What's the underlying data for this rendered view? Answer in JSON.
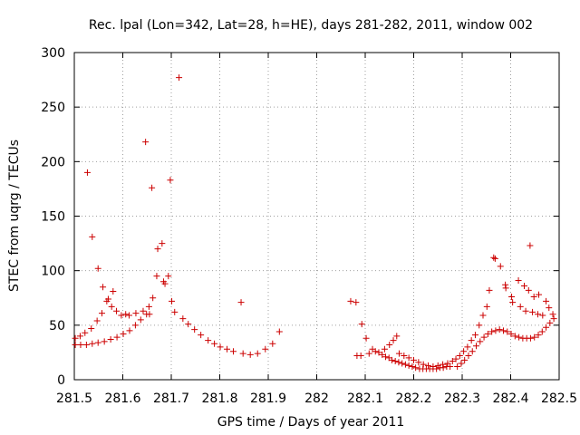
{
  "chart_data": {
    "type": "scatter",
    "title": "Rec. lpal (Lon=342, Lat=28, h=HE), days 281-282, 2011, window 002",
    "xlabel": "GPS time / Days of year 2011",
    "ylabel": "STEC from uqrg / TECUs",
    "xlim": [
      281.5,
      282.5
    ],
    "ylim": [
      0,
      300
    ],
    "xticks": [
      281.5,
      281.6,
      281.7,
      281.8,
      281.9,
      282.0,
      282.1,
      282.2,
      282.3,
      282.4,
      282.5
    ],
    "xtick_labels": [
      "281.5",
      "281.6",
      "281.7",
      "281.8",
      "281.9",
      "282",
      "282.1",
      "282.2",
      "282.3",
      "282.4",
      "282.5"
    ],
    "yticks": [
      0,
      50,
      100,
      150,
      200,
      250,
      300
    ],
    "ytick_labels": [
      "0",
      "50",
      "100",
      "150",
      "200",
      "250",
      "300"
    ],
    "grid": true,
    "marker": "plus",
    "marker_color": "#cc0000",
    "series": [
      {
        "name": "",
        "points": [
          [
            281.502,
            38
          ],
          [
            281.512,
            40
          ],
          [
            281.522,
            43
          ],
          [
            281.527,
            190
          ],
          [
            281.535,
            47
          ],
          [
            281.537,
            131
          ],
          [
            281.547,
            54
          ],
          [
            281.549,
            102
          ],
          [
            281.557,
            61
          ],
          [
            281.559,
            85
          ],
          [
            281.567,
            72
          ],
          [
            281.57,
            74
          ],
          [
            281.577,
            67
          ],
          [
            281.58,
            81
          ],
          [
            281.587,
            63
          ],
          [
            281.597,
            59
          ],
          [
            281.606,
            60
          ],
          [
            281.613,
            59
          ],
          [
            281.627,
            61
          ],
          [
            281.642,
            63
          ],
          [
            281.647,
            218
          ],
          [
            281.654,
            67
          ],
          [
            281.66,
            176
          ],
          [
            281.662,
            75
          ],
          [
            281.67,
            95
          ],
          [
            281.672,
            120
          ],
          [
            281.681,
            125
          ],
          [
            281.684,
            90
          ],
          [
            281.687,
            88
          ],
          [
            281.694,
            95
          ],
          [
            281.698,
            183
          ],
          [
            281.701,
            72
          ],
          [
            281.707,
            62
          ],
          [
            281.716,
            277
          ],
          [
            281.724,
            56
          ],
          [
            281.735,
            51
          ],
          [
            281.748,
            46
          ],
          [
            281.761,
            41
          ],
          [
            281.776,
            36
          ],
          [
            281.789,
            33
          ],
          [
            281.801,
            30
          ],
          [
            281.815,
            28
          ],
          [
            281.828,
            26
          ],
          [
            281.844,
            71
          ],
          [
            281.848,
            24
          ],
          [
            281.863,
            23
          ],
          [
            281.878,
            24
          ],
          [
            281.894,
            28
          ],
          [
            281.909,
            33
          ],
          [
            281.923,
            44
          ],
          [
            281.502,
            32
          ],
          [
            281.513,
            32
          ],
          [
            281.525,
            32
          ],
          [
            281.537,
            33
          ],
          [
            281.549,
            34
          ],
          [
            281.562,
            35
          ],
          [
            281.575,
            37
          ],
          [
            281.588,
            39
          ],
          [
            281.601,
            42
          ],
          [
            281.614,
            45
          ],
          [
            281.626,
            50
          ],
          [
            281.637,
            55
          ],
          [
            281.649,
            60
          ],
          [
            281.655,
            60
          ]
        ]
      },
      {
        "name": "",
        "points": [
          [
            282.07,
            72
          ],
          [
            282.081,
            71
          ],
          [
            282.083,
            22
          ],
          [
            282.091,
            22
          ],
          [
            282.093,
            51
          ],
          [
            282.102,
            38
          ],
          [
            282.108,
            24
          ],
          [
            282.115,
            28
          ],
          [
            282.121,
            26
          ],
          [
            282.128,
            25
          ],
          [
            282.135,
            23
          ],
          [
            282.142,
            21
          ],
          [
            282.149,
            20
          ],
          [
            282.155,
            18
          ],
          [
            282.162,
            17
          ],
          [
            282.169,
            16
          ],
          [
            282.176,
            15
          ],
          [
            282.183,
            14
          ],
          [
            282.19,
            13
          ],
          [
            282.197,
            12
          ],
          [
            282.204,
            11
          ],
          [
            282.212,
            10
          ],
          [
            282.219,
            10
          ],
          [
            282.226,
            10
          ],
          [
            282.233,
            10
          ],
          [
            282.24,
            10
          ],
          [
            282.247,
            10
          ],
          [
            282.254,
            11
          ],
          [
            282.261,
            11
          ],
          [
            282.268,
            12
          ],
          [
            282.275,
            12
          ],
          [
            282.14,
            28
          ],
          [
            282.15,
            32
          ],
          [
            282.158,
            36
          ],
          [
            282.165,
            40
          ],
          [
            282.17,
            24
          ],
          [
            282.18,
            22
          ],
          [
            282.19,
            20
          ],
          [
            282.2,
            18
          ],
          [
            282.21,
            16
          ],
          [
            282.22,
            14
          ],
          [
            282.23,
            13
          ],
          [
            282.24,
            12
          ],
          [
            282.25,
            13
          ],
          [
            282.26,
            14
          ],
          [
            282.27,
            15
          ],
          [
            282.28,
            17
          ],
          [
            282.287,
            19
          ],
          [
            282.295,
            22
          ],
          [
            282.303,
            26
          ],
          [
            282.311,
            30
          ],
          [
            282.319,
            36
          ],
          [
            282.327,
            41
          ],
          [
            282.335,
            50
          ],
          [
            282.343,
            59
          ],
          [
            282.351,
            67
          ],
          [
            282.356,
            82
          ],
          [
            282.365,
            112
          ],
          [
            282.368,
            111
          ],
          [
            282.379,
            104
          ],
          [
            282.389,
            87
          ],
          [
            282.39,
            84
          ],
          [
            282.402,
            76
          ],
          [
            282.404,
            71
          ],
          [
            282.416,
            91
          ],
          [
            282.42,
            67
          ],
          [
            282.428,
            86
          ],
          [
            282.431,
            63
          ],
          [
            282.437,
            82
          ],
          [
            282.44,
            123
          ],
          [
            282.445,
            62
          ],
          [
            282.448,
            76
          ],
          [
            282.456,
            60
          ],
          [
            282.458,
            78
          ],
          [
            282.466,
            59
          ],
          [
            282.473,
            72
          ],
          [
            282.479,
            66
          ],
          [
            282.487,
            60
          ],
          [
            282.29,
            12
          ],
          [
            282.298,
            15
          ],
          [
            282.305,
            18
          ],
          [
            282.313,
            22
          ],
          [
            282.321,
            26
          ],
          [
            282.329,
            31
          ],
          [
            282.337,
            35
          ],
          [
            282.345,
            39
          ],
          [
            282.353,
            42
          ],
          [
            282.361,
            44
          ],
          [
            282.369,
            45
          ],
          [
            282.377,
            46
          ],
          [
            282.385,
            45
          ],
          [
            282.393,
            44
          ],
          [
            282.401,
            42
          ],
          [
            282.409,
            40
          ],
          [
            282.417,
            39
          ],
          [
            282.425,
            38
          ],
          [
            282.433,
            38
          ],
          [
            282.441,
            38
          ],
          [
            282.449,
            39
          ],
          [
            282.457,
            41
          ],
          [
            282.465,
            44
          ],
          [
            282.473,
            48
          ],
          [
            282.481,
            52
          ],
          [
            282.489,
            56
          ]
        ]
      }
    ]
  }
}
